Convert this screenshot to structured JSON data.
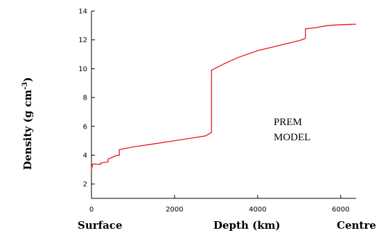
{
  "chart_data": {
    "type": "line",
    "title": "",
    "xlabel": "Depth  (km)",
    "ylabel": "Density  (g cm-3)",
    "ylabel_main": "Density  (g cm",
    "ylabel_exp": "-3",
    "ylabel_close": ")",
    "x_start_label": "Surface",
    "x_end_label": "Centre",
    "annotation_line1": "PREM",
    "annotation_line2": "MODEL",
    "xlim": [
      0,
      6371
    ],
    "ylim": [
      1,
      14
    ],
    "xticks": [
      0,
      2000,
      4000,
      6000
    ],
    "yticks": [
      2,
      4,
      6,
      8,
      10,
      12,
      14
    ],
    "xtick_labels": [
      "0",
      "2000",
      "4000",
      "6000"
    ],
    "ytick_labels": [
      "2",
      "4",
      "6",
      "8",
      "10",
      "12",
      "14"
    ],
    "grid": false,
    "series_color": "#e8141a",
    "x": [
      0,
      3,
      3,
      15,
      15,
      24.4,
      24.4,
      80,
      220,
      220,
      300,
      400,
      400,
      500,
      600,
      670,
      670,
      771,
      1000,
      1500,
      2000,
      2500,
      2741,
      2891,
      2891,
      3200,
      3500,
      4000,
      4500,
      5000,
      5149.5,
      5149.5,
      5400,
      5700,
      6000,
      6371
    ],
    "y": [
      2.9,
      2.9,
      3.15,
      3.15,
      3.3,
      3.3,
      3.38,
      3.38,
      3.36,
      3.44,
      3.49,
      3.54,
      3.72,
      3.85,
      3.98,
      3.99,
      4.38,
      4.44,
      4.57,
      4.78,
      5.0,
      5.22,
      5.33,
      5.57,
      9.9,
      10.35,
      10.75,
      11.25,
      11.6,
      11.95,
      12.1,
      12.76,
      12.85,
      13.0,
      13.05,
      13.09
    ]
  }
}
